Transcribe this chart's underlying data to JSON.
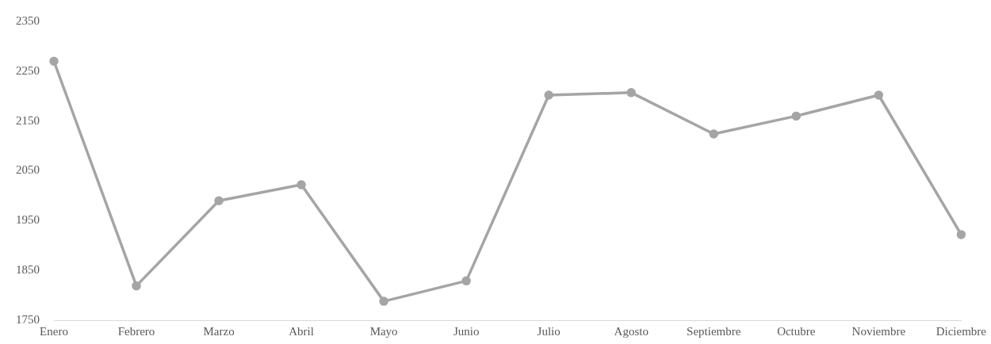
{
  "chart_data": {
    "type": "line",
    "categories": [
      "Enero",
      "Febrero",
      "Marzo",
      "Abril",
      "Mayo",
      "Junio",
      "Julio",
      "Agosto",
      "Septiembre",
      "Octubre",
      "Noviembre",
      "Diciembre"
    ],
    "series": [
      {
        "color": "#a5a5a5",
        "values": [
          2270,
          1819,
          1990,
          2022,
          1788,
          1829,
          2202,
          2207,
          2124,
          2160,
          2202,
          1922
        ]
      }
    ],
    "ylim": [
      1750,
      2350
    ],
    "yticks": [
      1750,
      1850,
      1950,
      2050,
      2150,
      2250,
      2350
    ],
    "grid": false,
    "legend": false,
    "marker": "circle",
    "line_style": "solid"
  }
}
